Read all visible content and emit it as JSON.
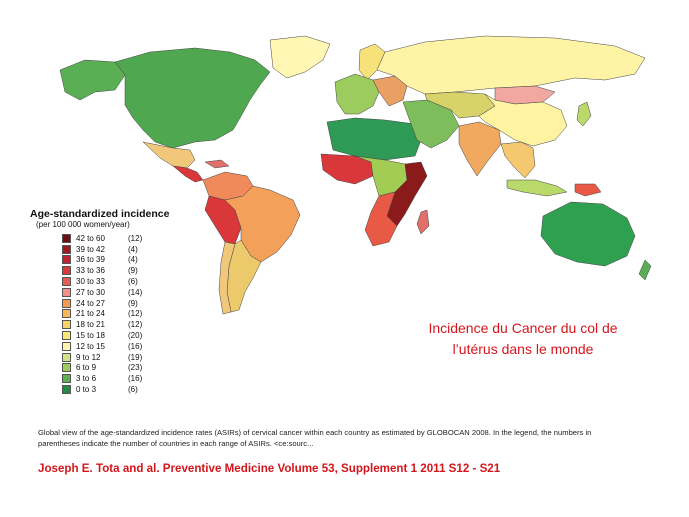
{
  "map": {
    "regions": [
      {
        "name": "north-america",
        "color": "#4fa84f"
      },
      {
        "name": "alaska",
        "color": "#5aaf55"
      },
      {
        "name": "greenland",
        "color": "#fff7b3"
      },
      {
        "name": "mexico",
        "color": "#f1c77a"
      },
      {
        "name": "central-america",
        "color": "#d9373a"
      },
      {
        "name": "caribbean",
        "color": "#e0706a"
      },
      {
        "name": "colombia-venezuela",
        "color": "#f08a5a"
      },
      {
        "name": "peru-bolivia",
        "color": "#d9373a"
      },
      {
        "name": "brazil",
        "color": "#f2a05a"
      },
      {
        "name": "argentina",
        "color": "#ecc96a"
      },
      {
        "name": "chile",
        "color": "#f1c77a"
      },
      {
        "name": "russia",
        "color": "#fff4a6"
      },
      {
        "name": "scandinavia",
        "color": "#f7e27a"
      },
      {
        "name": "western-europe",
        "color": "#9ccc5d"
      },
      {
        "name": "eastern-europe",
        "color": "#e9a062"
      },
      {
        "name": "middle-east",
        "color": "#2e9a55"
      },
      {
        "name": "north-africa",
        "color": "#7dbd5b"
      },
      {
        "name": "west-africa",
        "color": "#d9373a"
      },
      {
        "name": "central-africa",
        "color": "#a3cc55"
      },
      {
        "name": "east-africa",
        "color": "#8b1a1a"
      },
      {
        "name": "southern-africa",
        "color": "#e85a45"
      },
      {
        "name": "madagascar",
        "color": "#e0706a"
      },
      {
        "name": "central-asia",
        "color": "#d8d26a"
      },
      {
        "name": "china",
        "color": "#fff2a0"
      },
      {
        "name": "mongolia",
        "color": "#f2a8a0"
      },
      {
        "name": "india",
        "color": "#f0a95e"
      },
      {
        "name": "southeast-asia",
        "color": "#f5c870"
      },
      {
        "name": "indonesia",
        "color": "#b9d96a"
      },
      {
        "name": "png",
        "color": "#e85a45"
      },
      {
        "name": "japan",
        "color": "#b9d96a"
      },
      {
        "name": "australia",
        "color": "#2fa04f"
      },
      {
        "name": "new-zealand",
        "color": "#5aaf55"
      }
    ]
  },
  "legend": {
    "title": "Age-standardized incidence",
    "subtitle": "(per 100 000 women/year)",
    "items": [
      {
        "range": "42 to 60",
        "count": "(12)",
        "color": "#6b0f14"
      },
      {
        "range": "39 to 42",
        "count": "(4)",
        "color": "#9c1a22"
      },
      {
        "range": "36 to 39",
        "count": "(4)",
        "color": "#c0232e"
      },
      {
        "range": "33 to 36",
        "count": "(9)",
        "color": "#d73a3a"
      },
      {
        "range": "30 to 33",
        "count": "(6)",
        "color": "#e35d55"
      },
      {
        "range": "27 to 30",
        "count": "(14)",
        "color": "#f0908a"
      },
      {
        "range": "24 to 27",
        "count": "(9)",
        "color": "#f39a55"
      },
      {
        "range": "21 to 24",
        "count": "(12)",
        "color": "#f6b85a"
      },
      {
        "range": "18 to 21",
        "count": "(12)",
        "color": "#f8d26b"
      },
      {
        "range": "15 to 18",
        "count": "(20)",
        "color": "#fce87a"
      },
      {
        "range": "12 to 15",
        "count": "(16)",
        "color": "#fff7b0"
      },
      {
        "range": "9 to 12",
        "count": "(19)",
        "color": "#d2e48a"
      },
      {
        "range": "6 to  9",
        "count": "(23)",
        "color": "#9ccc5d"
      },
      {
        "range": "3 to  6",
        "count": "(16)",
        "color": "#5eb055"
      },
      {
        "range": "0 to  3",
        "count": "(6)",
        "color": "#238b45"
      }
    ]
  },
  "title": {
    "line1": "Incidence du Cancer du col de",
    "line2": "l’utérus dans le monde"
  },
  "caption": "Global view of the age-standardized incidence rates (ASIRs) of cervical cancer within each country as estimated by GLOBOCAN  2008. In the legend, the numbers in parentheses indicate the number of countries in each range of ASIRs.  <ce:sourc...",
  "citation": "Joseph E.  Tota  and al. Preventive Medicine Volume 53, Supplement 1 2011 S12 - S21"
}
